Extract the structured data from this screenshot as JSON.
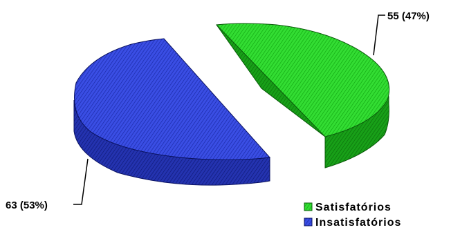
{
  "chart_data": {
    "type": "pie",
    "style": "3d-exploded",
    "title": "",
    "slices": [
      {
        "name": "Satisfatórios",
        "value": 55,
        "percent": 47,
        "label": "55 (47%)",
        "color": "#22cc22",
        "side_color": "#0f8f0f",
        "stroke": "#0a5a0a"
      },
      {
        "name": "Insatisfatórios",
        "value": 63,
        "percent": 53,
        "label": "63 (53%)",
        "color": "#2c3fd6",
        "side_color": "#1a2590",
        "stroke": "#0a1260"
      }
    ],
    "legend": {
      "position": "bottom-right",
      "items": [
        "Satisfatórios",
        "Insatisfatórios"
      ]
    }
  }
}
